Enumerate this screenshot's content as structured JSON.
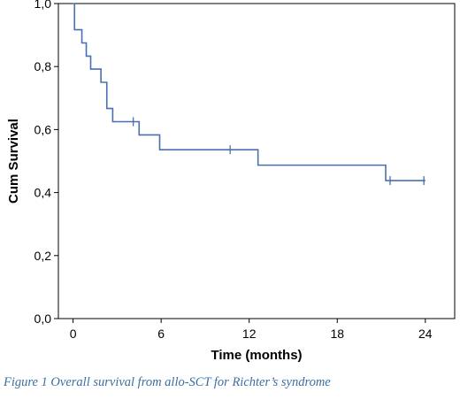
{
  "caption": "Figure 1 Overall survival from allo-SCT for Richter’s syndrome",
  "chart_data": {
    "type": "line",
    "subtype": "kaplan-meier step",
    "title": "",
    "xlabel": "Time (months)",
    "ylabel": "Cum Survival",
    "xlim": [
      -1,
      26
    ],
    "ylim": [
      0,
      1
    ],
    "x_ticks": [
      0,
      6,
      12,
      18,
      24
    ],
    "x_tick_labels": [
      "0",
      "6",
      "12",
      "18",
      "24"
    ],
    "y_ticks": [
      0,
      0.2,
      0.4,
      0.6,
      0.8,
      1.0
    ],
    "y_tick_labels": [
      "0,0",
      "0,2",
      "0,4",
      "0,6",
      "0,8",
      "1,0"
    ],
    "grid": false,
    "legend": "none",
    "line_color": "#4a6fb0",
    "series": [
      {
        "steps": [
          {
            "x": 0,
            "y": 1.0
          },
          {
            "x": 0.1,
            "y": 0.917
          },
          {
            "x": 0.6,
            "y": 0.875
          },
          {
            "x": 0.9,
            "y": 0.833
          },
          {
            "x": 1.2,
            "y": 0.792
          },
          {
            "x": 1.9,
            "y": 0.75
          },
          {
            "x": 2.3,
            "y": 0.667
          },
          {
            "x": 2.7,
            "y": 0.625
          },
          {
            "x": 4.5,
            "y": 0.583
          },
          {
            "x": 5.9,
            "y": 0.536
          },
          {
            "x": 12.6,
            "y": 0.487
          },
          {
            "x": 21.3,
            "y": 0.438
          }
        ],
        "end_x": 24,
        "censored": [
          {
            "x": 4.1,
            "y": 0.625
          },
          {
            "x": 10.7,
            "y": 0.536
          },
          {
            "x": 21.6,
            "y": 0.438
          },
          {
            "x": 23.9,
            "y": 0.438
          }
        ]
      }
    ]
  }
}
